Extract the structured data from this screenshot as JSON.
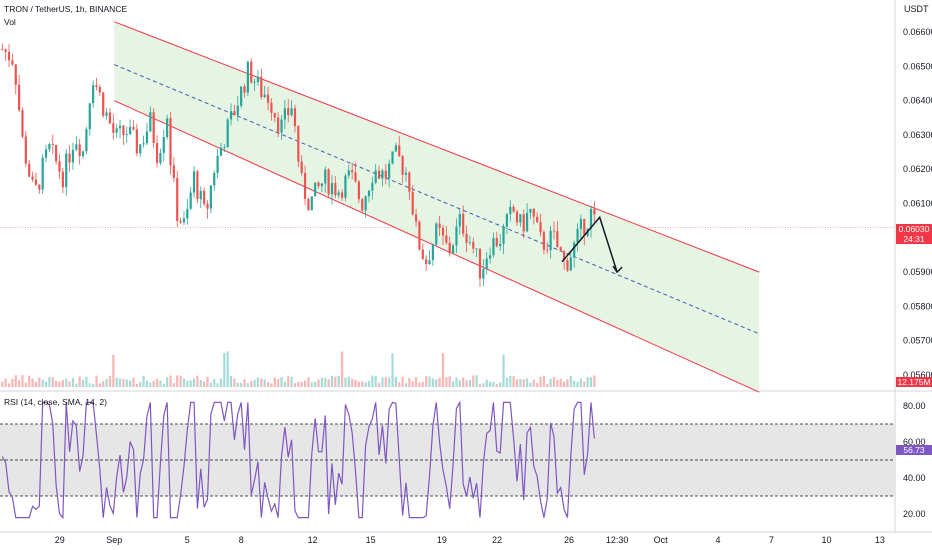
{
  "header": {
    "symbol": "TRON / TetherUS, 1h, BINANCE",
    "volume_label": "Vol"
  },
  "price_axis": {
    "unit": "USDT",
    "ticks": [
      "0.06600",
      "0.06500",
      "0.06400",
      "0.06300",
      "0.06200",
      "0.06100",
      "0.06000",
      "0.05900",
      "0.05800",
      "0.05700",
      "0.05600"
    ]
  },
  "price_badge": {
    "value": "0.06030",
    "countdown": "24:31",
    "color": "#f23645"
  },
  "volume_badge": {
    "value": "12.175M",
    "color": "#f23645"
  },
  "rsi": {
    "label": "RSI (14, close, SMA, 14, 2)",
    "value": "56.73",
    "ticks": [
      "80.00",
      "60.00",
      "40.00",
      "20.00"
    ],
    "upper_band": 70,
    "middle_band": 50,
    "lower_band": 30,
    "line_color": "#7e57c2"
  },
  "time_axis": {
    "ticks": [
      "29",
      "Sep",
      "5",
      "8",
      "12",
      "15",
      "19",
      "22",
      "26",
      "12:30",
      "Oct",
      "4",
      "7",
      "10",
      "13"
    ]
  },
  "colors": {
    "up": "#26a69a",
    "down": "#ef5350",
    "channel_line": "#f23645",
    "channel_fill": "#e6f4e4",
    "midline": "#3a5fad"
  },
  "chart_data": {
    "type": "candlestick",
    "interval": "1h",
    "x_axis": "date (Aug 27 – Oct 14)",
    "y_range": [
      0.0555,
      0.0668
    ],
    "last_price": 0.0603,
    "close_path": [
      {
        "t": 0,
        "p": 0.0655
      },
      {
        "t": 2.0,
        "p": 0.0652
      },
      {
        "t": 3.5,
        "p": 0.0628
      },
      {
        "t": 5.5,
        "p": 0.0612
      },
      {
        "t": 8.0,
        "p": 0.0626
      },
      {
        "t": 10.5,
        "p": 0.0618
      },
      {
        "t": 12.5,
        "p": 0.063
      },
      {
        "t": 14.0,
        "p": 0.0625
      },
      {
        "t": 15.5,
        "p": 0.0648
      },
      {
        "t": 17.5,
        "p": 0.0638
      },
      {
        "t": 19.5,
        "p": 0.0629
      },
      {
        "t": 21.5,
        "p": 0.0631
      },
      {
        "t": 23.5,
        "p": 0.0626
      },
      {
        "t": 25.5,
        "p": 0.0634
      },
      {
        "t": 26.8,
        "p": 0.0624
      },
      {
        "t": 28.5,
        "p": 0.0637
      },
      {
        "t": 29.0,
        "p": 0.0623
      },
      {
        "t": 30.0,
        "p": 0.0608
      },
      {
        "t": 31.5,
        "p": 0.0603
      },
      {
        "t": 33.0,
        "p": 0.0618
      },
      {
        "t": 35.0,
        "p": 0.0606
      },
      {
        "t": 36.5,
        "p": 0.062
      },
      {
        "t": 38.0,
        "p": 0.0628
      },
      {
        "t": 40.0,
        "p": 0.0637
      },
      {
        "t": 42.5,
        "p": 0.0649
      },
      {
        "t": 44.5,
        "p": 0.0643
      },
      {
        "t": 46.0,
        "p": 0.0641
      },
      {
        "t": 48.0,
        "p": 0.0632
      },
      {
        "t": 50.0,
        "p": 0.0639
      },
      {
        "t": 51.5,
        "p": 0.0616
      },
      {
        "t": 53.0,
        "p": 0.061
      },
      {
        "t": 55.5,
        "p": 0.0617
      },
      {
        "t": 58.0,
        "p": 0.0614
      },
      {
        "t": 60.0,
        "p": 0.0618
      },
      {
        "t": 62.0,
        "p": 0.061
      },
      {
        "t": 64.0,
        "p": 0.062
      },
      {
        "t": 66.0,
        "p": 0.0618
      },
      {
        "t": 68.0,
        "p": 0.0624
      },
      {
        "t": 70.0,
        "p": 0.0618
      },
      {
        "t": 71.5,
        "p": 0.06
      },
      {
        "t": 73.0,
        "p": 0.0593
      },
      {
        "t": 75.0,
        "p": 0.0602
      },
      {
        "t": 77.0,
        "p": 0.0596
      },
      {
        "t": 79.0,
        "p": 0.0605
      },
      {
        "t": 81.0,
        "p": 0.0598
      },
      {
        "t": 82.5,
        "p": 0.059
      },
      {
        "t": 84.0,
        "p": 0.0598
      },
      {
        "t": 86.0,
        "p": 0.06
      },
      {
        "t": 88.0,
        "p": 0.0608
      },
      {
        "t": 89.5,
        "p": 0.0603
      },
      {
        "t": 91.0,
        "p": 0.0608
      },
      {
        "t": 93.0,
        "p": 0.0598
      },
      {
        "t": 95.0,
        "p": 0.06
      },
      {
        "t": 97.0,
        "p": 0.0592
      },
      {
        "t": 98.5,
        "p": 0.0597
      },
      {
        "t": 100.0,
        "p": 0.0603
      },
      {
        "t": 101.5,
        "p": 0.0607
      },
      {
        "t": 102.5,
        "p": 0.0603
      }
    ],
    "channel": {
      "upper": {
        "start": {
          "t": 19.3,
          "p": 0.0663
        },
        "end": {
          "t": 130.5,
          "p": 0.059
        }
      },
      "lower": {
        "start": {
          "t": 19.3,
          "p": 0.064
        },
        "end": {
          "t": 130.5,
          "p": 0.0555
        }
      },
      "midline": {
        "start": {
          "t": 19.3,
          "p": 0.06505
        },
        "end": {
          "t": 130.5,
          "p": 0.0572
        }
      }
    },
    "projection": [
      {
        "t": 96.5,
        "p": 0.0593
      },
      {
        "t": 103.0,
        "p": 0.0606
      },
      {
        "t": 106.0,
        "p": 0.059
      }
    ],
    "rsi_levels": {
      "upper": 70,
      "middle": 50,
      "lower": 30,
      "last": 56.73
    }
  }
}
